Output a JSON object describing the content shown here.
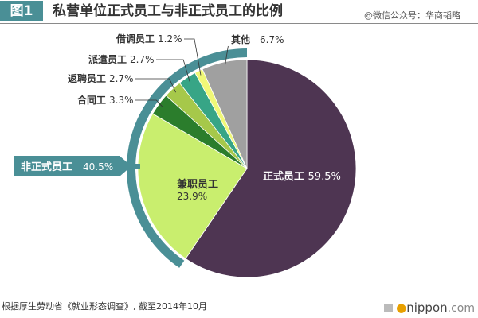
{
  "header": {
    "figure_label": "图1",
    "title": "私营单位正式员工与非正式员工的比例",
    "watermark": "@微信公众号：华商韬略"
  },
  "footer": {
    "note": "根据厚生劳动省《就业形态调查》, 截至2014年10月",
    "logo": "nippon.com",
    "logo_parts": {
      "dot": "●",
      "name": "nippon",
      "suffix": ".com"
    }
  },
  "colors": {
    "accent": "#4a8f96",
    "regular": "#4e3552",
    "part_time": "#c9ee6e",
    "contract": "#2b7d2c",
    "rehired": "#a6c84a",
    "dispatched": "#37a586",
    "borrowed": "#f0f877",
    "other": "#a0a0a0"
  },
  "chart_data": {
    "type": "pie",
    "title": "私营单位正式员工与非正式员工的比例",
    "unit": "%",
    "slices": [
      {
        "name": "正式员工",
        "value": 59.5,
        "label": "正式员工",
        "value_label": "59.5%",
        "color": "#4e3552"
      },
      {
        "name": "兼职员工",
        "value": 23.9,
        "label": "兼职员工",
        "value_label": "23.9%",
        "color": "#c9ee6e"
      },
      {
        "name": "合同工",
        "value": 3.3,
        "label": "合同工",
        "value_label": "3.3%",
        "color": "#2b7d2c"
      },
      {
        "name": "返聘员工",
        "value": 2.7,
        "label": "返聘员工",
        "value_label": "2.7%",
        "color": "#a6c84a"
      },
      {
        "name": "派遣员工",
        "value": 2.7,
        "label": "派遣员工",
        "value_label": "2.7%",
        "color": "#37a586"
      },
      {
        "name": "借调员工",
        "value": 1.2,
        "label": "借调员工",
        "value_label": "1.2%",
        "color": "#f0f877"
      },
      {
        "name": "其他",
        "value": 6.7,
        "label": "其他",
        "value_label": "6.7%",
        "color": "#a0a0a0"
      }
    ],
    "group": {
      "name": "非正式员工",
      "value": 40.5,
      "label": "非正式员工",
      "value_label": "40.5%",
      "members": [
        "兼职员工",
        "合同工",
        "返聘员工",
        "派遣员工",
        "借调员工",
        "其他"
      ],
      "color": "#4a8f96"
    }
  }
}
